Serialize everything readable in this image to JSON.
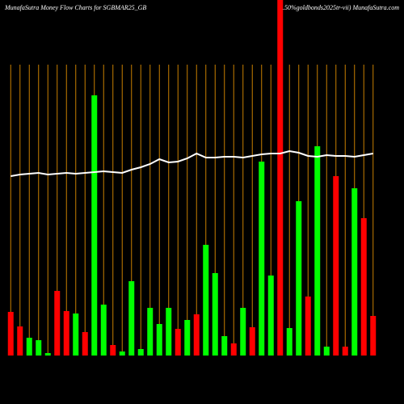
{
  "chart_data": {
    "type": "bar",
    "title": "MunafaSutra  Money Flow  Charts for SGBMAR25_GB",
    "subtitle": "(2.50%goldbonds2025tr-vii) MunafaSutra.com",
    "categories": [
      null,
      null,
      null,
      null,
      null,
      null,
      null,
      null,
      null,
      null,
      null,
      null,
      null,
      null,
      null,
      null,
      null,
      null,
      null,
      null,
      null,
      null,
      null,
      null,
      null,
      null,
      null,
      null,
      null,
      null,
      null,
      null,
      null,
      null,
      null,
      null,
      null,
      null,
      null,
      null
    ],
    "values": [
      54,
      36,
      22,
      19,
      3,
      80,
      55,
      52,
      29,
      322,
      63,
      13,
      5,
      92,
      8,
      59,
      39,
      59,
      33,
      44,
      51,
      137,
      102,
      24,
      15,
      59,
      35,
      240,
      99,
      440,
      34,
      191,
      73,
      259,
      11,
      222,
      11,
      207,
      170,
      49
    ],
    "colors": [
      "#ff0000",
      "#ff0000",
      "#00ff00",
      "#00ff00",
      "#00ff00",
      "#ff0000",
      "#ff0000",
      "#00ff00",
      "#ff0000",
      "#00ff00",
      "#00ff00",
      "#ff0000",
      "#00ff00",
      "#00ff00",
      "#00ff00",
      "#00ff00",
      "#00ff00",
      "#00ff00",
      "#ff0000",
      "#00ff00",
      "#ff0000",
      "#00ff00",
      "#00ff00",
      "#00ff00",
      "#ff0000",
      "#00ff00",
      "#ff0000",
      "#00ff00",
      "#00ff00",
      "#ff0000",
      "#00ff00",
      "#00ff00",
      "#ff0000",
      "#00ff00",
      "#00ff00",
      "#ff0000",
      "#ff0000",
      "#00ff00",
      "#ff0000",
      "#ff0000"
    ],
    "line": {
      "color": "#ffffff",
      "values": [
        222,
        224,
        225,
        226,
        224,
        225,
        226,
        225,
        226,
        227,
        228,
        227,
        226,
        230,
        233,
        237,
        243,
        239,
        240,
        244,
        250,
        245,
        245,
        246,
        246,
        245,
        247,
        249,
        250,
        250,
        253,
        251,
        247,
        246,
        248,
        247,
        247,
        246,
        248,
        250
      ]
    },
    "gridline_color": "#c87f00",
    "ylim": [
      0,
      440
    ]
  }
}
